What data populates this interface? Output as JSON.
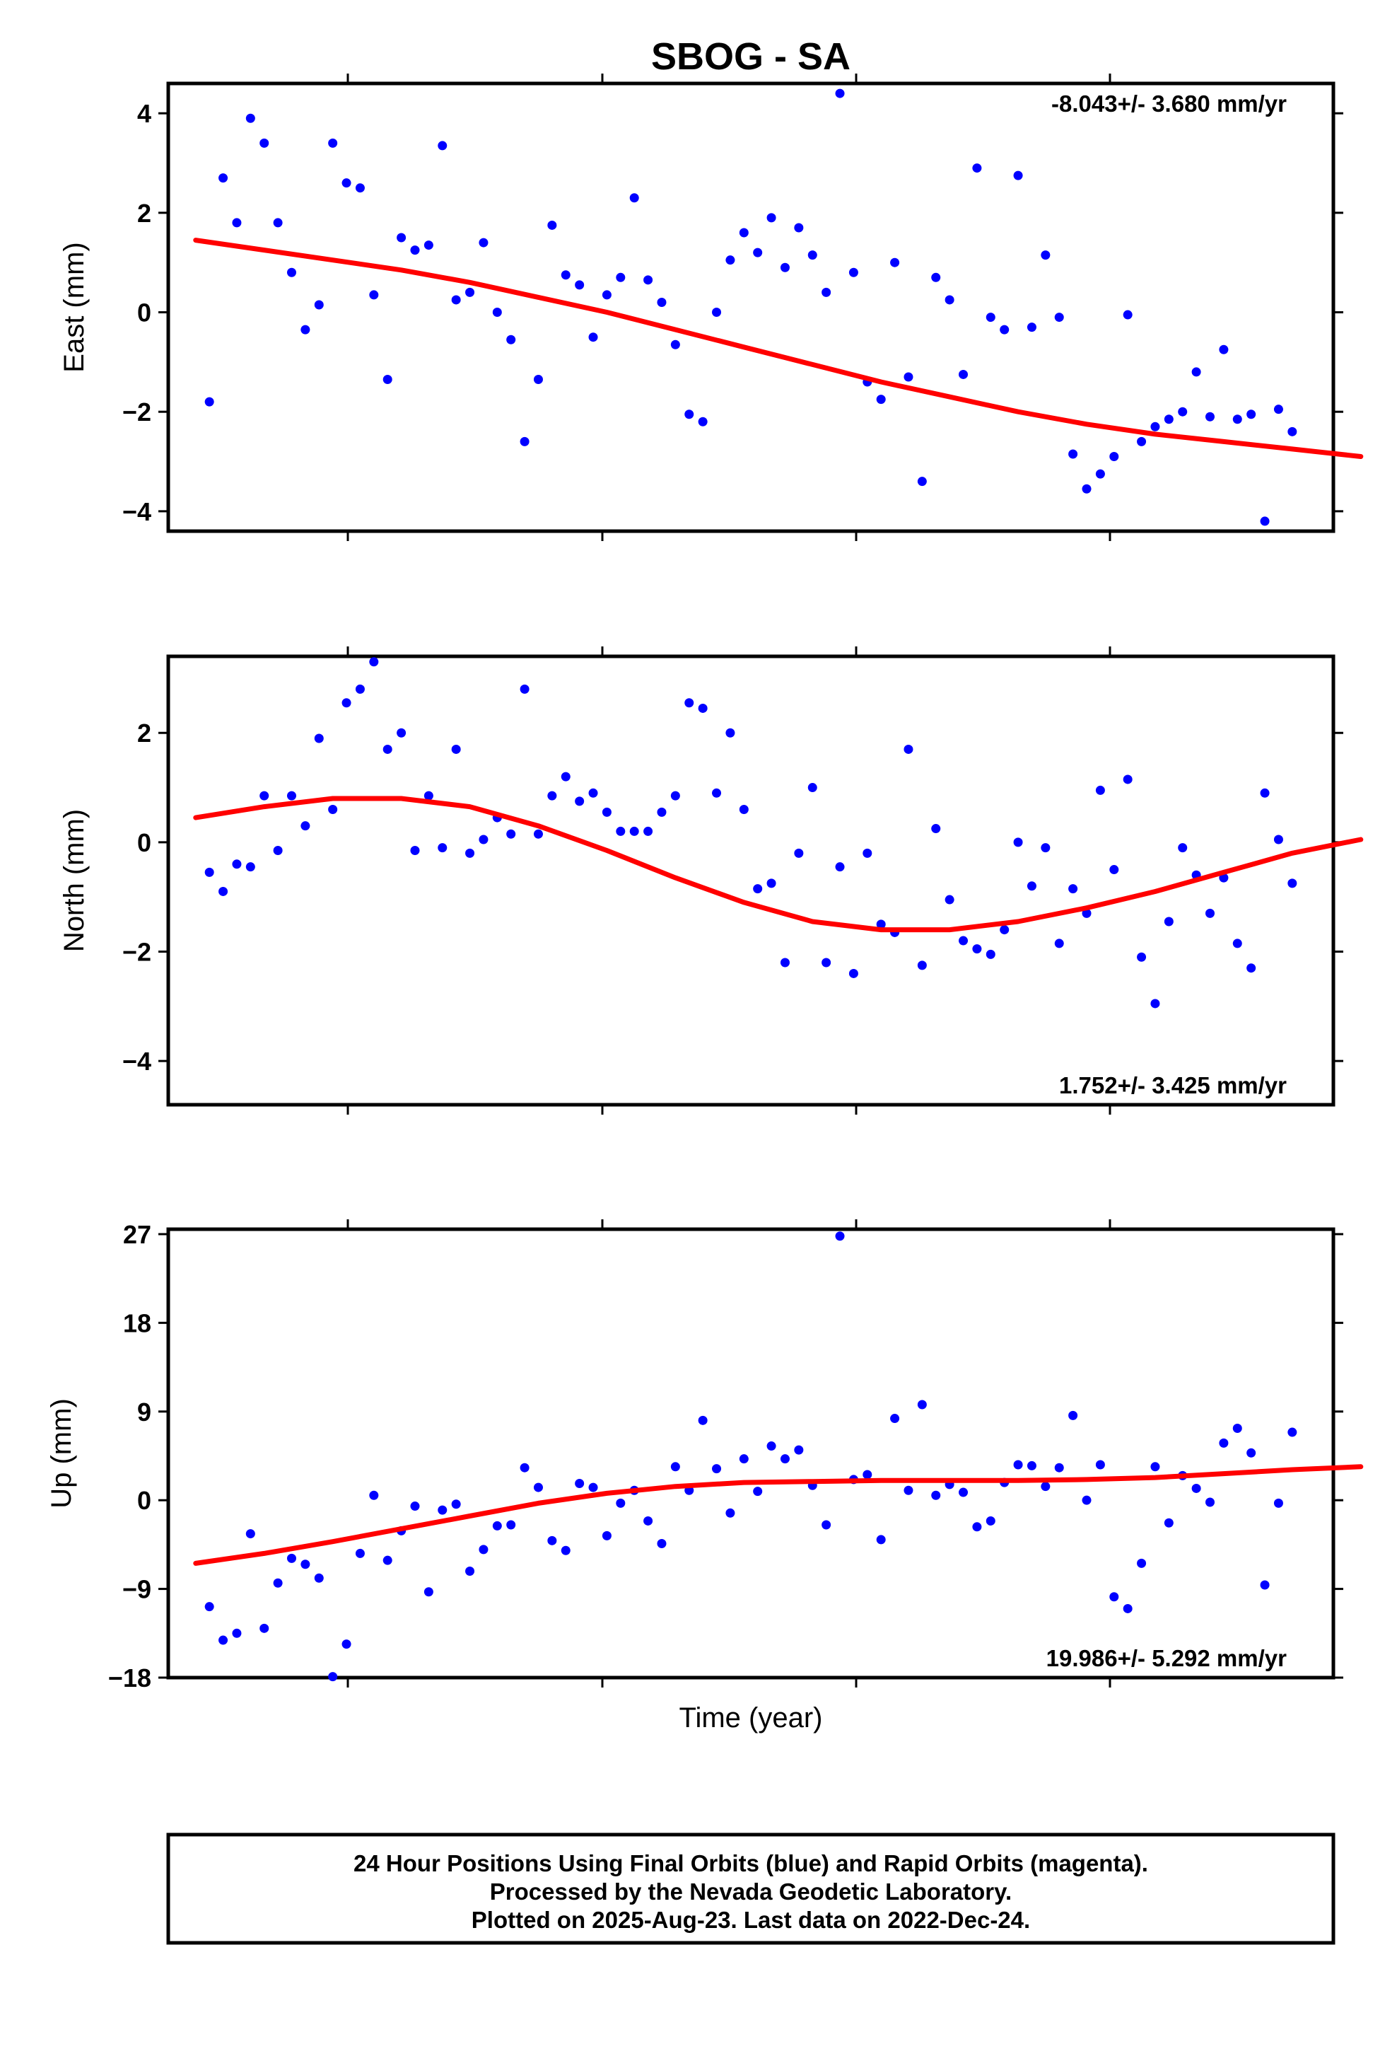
{
  "title": "SBOG - SA",
  "xlabel": "Time (year)",
  "footer": {
    "lines": [
      "24 Hour Positions Using Final Orbits (blue) and Rapid Orbits (magenta).",
      "Processed by the Nevada Geodetic Laboratory.",
      "Plotted on 2025-Aug-23. Last data on 2022-Dec-24."
    ]
  },
  "colors": {
    "points": "#0000ff",
    "fit": "#ff0000",
    "frame": "#000000"
  },
  "chart_data": [
    {
      "type": "scatter",
      "component": "East",
      "ylabel": "East (mm)",
      "ylim": [
        -4.4,
        4.6
      ],
      "yticks": [
        4,
        2,
        0,
        -2,
        -4
      ],
      "ytick_labels": [
        "4",
        "2",
        "0",
        "−2",
        "−4"
      ],
      "rate_text": "-8.043+/- 3.680 mm/yr",
      "rate_position": "top-right",
      "x": [
        6,
        8,
        10,
        12,
        14,
        16,
        18,
        20,
        22,
        24,
        26,
        28,
        30,
        32,
        34,
        36,
        38,
        40,
        42,
        44,
        46,
        48,
        50,
        52,
        54,
        56,
        58,
        60,
        62,
        64,
        66,
        68,
        70,
        72,
        74,
        76,
        78,
        80,
        82,
        84,
        86,
        88,
        90,
        92,
        94,
        96,
        98,
        100,
        102,
        104,
        106,
        108,
        110,
        112,
        114,
        116,
        118,
        120,
        122,
        124,
        126,
        128,
        130,
        132,
        134,
        136,
        138,
        140,
        142,
        144,
        146,
        148,
        150,
        152,
        154,
        156,
        158,
        160,
        162,
        164
      ],
      "y": [
        -1.8,
        2.7,
        1.8,
        3.9,
        3.4,
        1.8,
        0.8,
        -0.35,
        0.15,
        3.4,
        2.6,
        2.5,
        0.35,
        -1.35,
        1.5,
        1.25,
        1.35,
        3.35,
        0.25,
        0.4,
        1.4,
        0.0,
        -0.55,
        -2.6,
        -1.35,
        1.75,
        0.75,
        0.55,
        -0.5,
        0.35,
        0.7,
        2.3,
        0.65,
        0.2,
        -0.65,
        -2.05,
        -2.2,
        0.0,
        1.05,
        1.6,
        1.2,
        1.9,
        0.9,
        1.7,
        1.15,
        0.4,
        4.4,
        0.8,
        -1.4,
        -1.75,
        1.0,
        -1.3,
        -3.4,
        0.7,
        0.25,
        -1.25,
        2.9,
        -0.1,
        -0.35,
        2.75,
        -0.3,
        1.15,
        -0.1,
        -2.85,
        -3.55,
        -3.25,
        -2.9,
        -0.05,
        -2.6,
        -2.3,
        -2.15,
        -2.0,
        -1.2,
        -2.1,
        -0.75,
        -2.15,
        -2.05,
        -4.2,
        -1.95,
        -2.4
      ],
      "fit_x": [
        0,
        10,
        20,
        30,
        40,
        50,
        60,
        70,
        80,
        90,
        100,
        110,
        120,
        130,
        140,
        150,
        160,
        170
      ],
      "fit_y": [
        1.45,
        1.25,
        1.05,
        0.85,
        0.6,
        0.3,
        0.0,
        -0.35,
        -0.7,
        -1.05,
        -1.4,
        -1.7,
        -2.0,
        -2.25,
        -2.45,
        -2.6,
        -2.75,
        -2.9
      ]
    },
    {
      "type": "scatter",
      "component": "North",
      "ylabel": "North (mm)",
      "ylim": [
        -4.8,
        3.4
      ],
      "yticks": [
        2,
        0,
        -2,
        -4
      ],
      "ytick_labels": [
        "2",
        "0",
        "−2",
        "−4"
      ],
      "rate_text": "1.752+/- 3.425 mm/yr",
      "rate_position": "bottom-right",
      "x": [
        6,
        8,
        10,
        12,
        14,
        16,
        18,
        20,
        22,
        24,
        26,
        28,
        30,
        32,
        34,
        36,
        38,
        40,
        42,
        44,
        46,
        48,
        50,
        52,
        54,
        56,
        58,
        60,
        62,
        64,
        66,
        68,
        70,
        72,
        74,
        76,
        78,
        80,
        82,
        84,
        86,
        88,
        90,
        92,
        94,
        96,
        98,
        100,
        102,
        104,
        106,
        108,
        110,
        112,
        114,
        116,
        118,
        120,
        122,
        124,
        126,
        128,
        130,
        132,
        134,
        136,
        138,
        140,
        142,
        144,
        146,
        148,
        150,
        152,
        154,
        156,
        158,
        160,
        162,
        164
      ],
      "y": [
        -0.55,
        -0.9,
        -0.4,
        -0.45,
        0.85,
        -0.15,
        0.85,
        0.3,
        1.9,
        0.6,
        2.55,
        2.8,
        3.3,
        1.7,
        2.0,
        -0.15,
        0.85,
        -0.1,
        1.7,
        -0.2,
        0.05,
        0.45,
        0.15,
        2.8,
        0.15,
        0.85,
        1.2,
        0.75,
        0.9,
        0.55,
        0.2,
        0.2,
        0.2,
        0.55,
        0.85,
        2.55,
        2.45,
        0.9,
        2.0,
        0.6,
        -0.85,
        -0.75,
        -2.2,
        -0.2,
        1.0,
        -2.2,
        -0.45,
        -2.4,
        -0.2,
        -1.5,
        -1.65,
        1.7,
        -2.25,
        0.25,
        -1.05,
        -1.8,
        -1.95,
        -2.05,
        -1.6,
        0.0,
        -0.8,
        -0.1,
        -1.85,
        -0.85,
        -1.3,
        0.95,
        -0.5,
        1.15,
        -2.1,
        -2.95,
        -1.45,
        -0.1,
        -0.6,
        -1.3,
        -0.65,
        -1.85,
        -2.3,
        0.9,
        0.05,
        -0.75
      ],
      "fit_x": [
        0,
        10,
        20,
        30,
        40,
        50,
        60,
        70,
        80,
        90,
        100,
        110,
        120,
        130,
        140,
        150,
        160,
        170
      ],
      "fit_y": [
        0.45,
        0.65,
        0.8,
        0.8,
        0.65,
        0.3,
        -0.15,
        -0.65,
        -1.1,
        -1.45,
        -1.6,
        -1.6,
        -1.45,
        -1.2,
        -0.9,
        -0.55,
        -0.2,
        0.05
      ]
    },
    {
      "type": "scatter",
      "component": "Up",
      "ylabel": "Up (mm)",
      "ylim": [
        -18,
        27.5
      ],
      "yticks": [
        27,
        18,
        9,
        0,
        -9,
        -18
      ],
      "ytick_labels": [
        "27",
        "18",
        "9",
        "0",
        "−9",
        "−18"
      ],
      "rate_text": "19.986+/- 5.292 mm/yr",
      "rate_position": "bottom-right",
      "x": [
        6,
        8,
        10,
        12,
        14,
        16,
        18,
        20,
        22,
        24,
        26,
        28,
        30,
        32,
        34,
        36,
        38,
        40,
        42,
        44,
        46,
        48,
        50,
        52,
        54,
        56,
        58,
        60,
        62,
        64,
        66,
        68,
        70,
        72,
        74,
        76,
        78,
        80,
        82,
        84,
        86,
        88,
        90,
        92,
        94,
        96,
        98,
        100,
        102,
        104,
        106,
        108,
        110,
        112,
        114,
        116,
        118,
        120,
        122,
        124,
        126,
        128,
        130,
        132,
        134,
        136,
        138,
        140,
        142,
        144,
        146,
        148,
        150,
        152,
        154,
        156,
        158,
        160,
        162,
        164
      ],
      "y": [
        -10.8,
        -14.2,
        -13.5,
        -3.4,
        -13.0,
        -8.4,
        -5.9,
        -6.5,
        -7.9,
        -17.9,
        -14.6,
        -5.4,
        0.5,
        -6.1,
        -3.1,
        -0.6,
        -9.3,
        -1.0,
        -0.4,
        -7.2,
        -5.0,
        -2.6,
        -2.5,
        3.3,
        1.3,
        -4.1,
        -5.1,
        1.7,
        1.3,
        -3.6,
        -0.3,
        1.0,
        -2.1,
        -4.4,
        3.4,
        1.0,
        8.1,
        3.2,
        -1.3,
        4.2,
        0.9,
        5.5,
        4.2,
        5.1,
        1.5,
        -2.5,
        26.8,
        2.1,
        2.6,
        -4.0,
        8.3,
        1.0,
        9.7,
        0.5,
        1.6,
        0.8,
        -2.7,
        -2.1,
        1.8,
        3.6,
        3.5,
        1.4,
        3.3,
        8.6,
        0.0,
        3.6,
        -9.8,
        -11.0,
        -6.4,
        3.4,
        -2.3,
        2.5,
        1.2,
        -0.2,
        5.8,
        7.3,
        4.8,
        -8.6,
        -0.3,
        6.9
      ],
      "fit_x": [
        0,
        10,
        20,
        30,
        40,
        50,
        60,
        70,
        80,
        90,
        100,
        110,
        120,
        130,
        140,
        150,
        160,
        170
      ],
      "fit_y": [
        -6.4,
        -5.4,
        -4.2,
        -2.9,
        -1.6,
        -0.3,
        0.7,
        1.4,
        1.8,
        1.9,
        2.0,
        2.0,
        2.0,
        2.1,
        2.3,
        2.7,
        3.1,
        3.4
      ]
    }
  ]
}
